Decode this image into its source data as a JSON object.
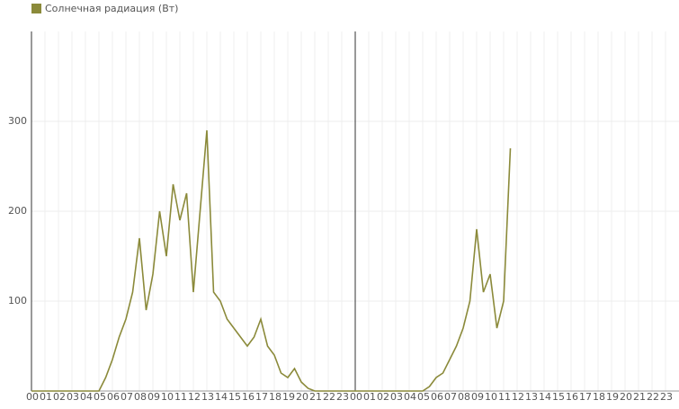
{
  "chart_data": {
    "type": "line",
    "categories": [
      "00",
      null,
      "01",
      null,
      "02",
      null,
      "03",
      null,
      "04",
      null,
      "05",
      null,
      "06",
      null,
      "07",
      null,
      "08",
      null,
      "09",
      null,
      "10",
      null,
      "11",
      null,
      "12",
      null,
      "13",
      null,
      "14",
      null,
      "15",
      null,
      "16",
      null,
      "17",
      null,
      "18",
      null,
      "19",
      null,
      "20",
      null,
      "21",
      null,
      "22",
      null,
      "23",
      null,
      "00",
      null,
      "01",
      null,
      "02",
      null,
      "03",
      null,
      "04",
      null,
      "05",
      null,
      "06",
      null,
      "07",
      null,
      "08",
      null,
      "09",
      null,
      "10",
      null,
      "11",
      null,
      "12",
      null,
      "13",
      null,
      "14",
      null,
      "15",
      null,
      "16",
      null,
      "17",
      null,
      "18",
      null,
      "19",
      null,
      "20",
      null,
      "21",
      null,
      "22",
      null,
      "23",
      null
    ],
    "series": [
      {
        "name": "Солнечная радиация (Вт)",
        "color": "#8b8a3a",
        "values": [
          0,
          0,
          0,
          0,
          0,
          0,
          0,
          0,
          0,
          0,
          0,
          15,
          35,
          60,
          80,
          110,
          170,
          90,
          130,
          200,
          150,
          230,
          190,
          220,
          110,
          200,
          290,
          110,
          100,
          80,
          70,
          60,
          50,
          60,
          80,
          50,
          40,
          20,
          15,
          25,
          10,
          3,
          0,
          0,
          0,
          0,
          0,
          0,
          0,
          0,
          0,
          0,
          0,
          0,
          0,
          0,
          0,
          0,
          0,
          5,
          15,
          20,
          35,
          50,
          70,
          100,
          180,
          110,
          130,
          70,
          100,
          270,
          null,
          null,
          null,
          null,
          null,
          null,
          null,
          null,
          null,
          null,
          null,
          null,
          null,
          null,
          null,
          null,
          null,
          null,
          null,
          null,
          null,
          null,
          null,
          null
        ]
      }
    ],
    "ylim": [
      0,
      400
    ],
    "yticks": [
      100,
      200,
      300
    ],
    "grid": true
  }
}
